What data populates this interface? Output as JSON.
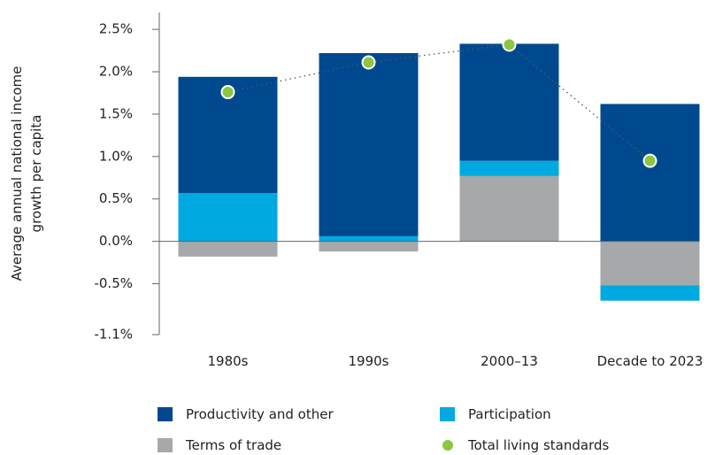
{
  "chart_data": {
    "type": "bar",
    "stacked": true,
    "y_label": "Average annual national income growth per capita",
    "categories": [
      "1980s",
      "1990s",
      "2000–13",
      "Decade to 2023"
    ],
    "series": [
      {
        "name": "Productivity and other",
        "type": "bar",
        "color": "#00498f",
        "values": [
          1.37,
          2.16,
          1.38,
          1.62
        ]
      },
      {
        "name": "Participation",
        "type": "bar",
        "color": "#00a9e0",
        "values": [
          0.57,
          0.06,
          0.18,
          -0.18
        ]
      },
      {
        "name": "Terms of trade",
        "type": "bar",
        "color": "#a7a8aa",
        "values": [
          -0.18,
          -0.12,
          0.77,
          -0.52
        ]
      },
      {
        "name": "Total living standards",
        "type": "line",
        "color": "#8dc63f",
        "values": [
          1.76,
          2.11,
          2.32,
          0.95
        ]
      }
    ],
    "ylim": [
      -1.1,
      2.7
    ],
    "yticks": [
      {
        "value": -1.1,
        "label": "-1.1%"
      },
      {
        "value": -0.5,
        "label": "-0.5%"
      },
      {
        "value": 0,
        "label": "0.0%"
      },
      {
        "value": 0.5,
        "label": "0.5%"
      },
      {
        "value": 1.0,
        "label": "1.0%"
      },
      {
        "value": 1.5,
        "label": "1.5%"
      },
      {
        "value": 2.0,
        "label": "2.0%"
      },
      {
        "value": 2.5,
        "label": "2.5%"
      }
    ],
    "grid": false
  }
}
